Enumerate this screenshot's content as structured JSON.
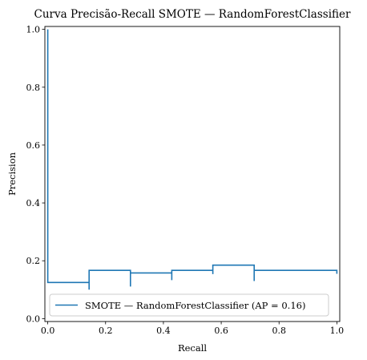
{
  "chart_data": {
    "type": "line",
    "title": "Curva Precisão-Recall SMOTE — RandomForestClassifier",
    "xlabel": "Recall",
    "ylabel": "Precision",
    "xlim": [
      -0.01,
      1.01
    ],
    "ylim": [
      -0.01,
      1.01
    ],
    "xticks": [
      0.0,
      0.2,
      0.4,
      0.6,
      0.8,
      1.0
    ],
    "yticks": [
      0.0,
      0.2,
      0.4,
      0.6,
      0.8,
      1.0
    ],
    "xtick_labels": [
      "0.0",
      "0.2",
      "0.4",
      "0.6",
      "0.8",
      "1.0"
    ],
    "ytick_labels": [
      "0.0",
      "0.2",
      "0.4",
      "0.6",
      "0.8",
      "1.0"
    ],
    "grid": false,
    "legend_position": "lower-left",
    "series": [
      {
        "name": "SMOTE — RandomForestClassifier (AP = 0.16)",
        "color": "#1f77b4",
        "drawstyle": "steps-post",
        "x": [
          0.0,
          0.0,
          0.0,
          0.143,
          0.143,
          0.143,
          0.286,
          0.286,
          0.286,
          0.429,
          0.429,
          0.429,
          0.571,
          0.571,
          0.571,
          0.714,
          0.714,
          0.714,
          1.0,
          1.0
        ],
        "y": [
          1.0,
          1.0,
          0.125,
          0.125,
          0.1,
          0.167,
          0.167,
          0.111,
          0.158,
          0.158,
          0.133,
          0.167,
          0.167,
          0.154,
          0.185,
          0.185,
          0.13,
          0.167,
          0.167,
          0.155
        ]
      }
    ]
  }
}
